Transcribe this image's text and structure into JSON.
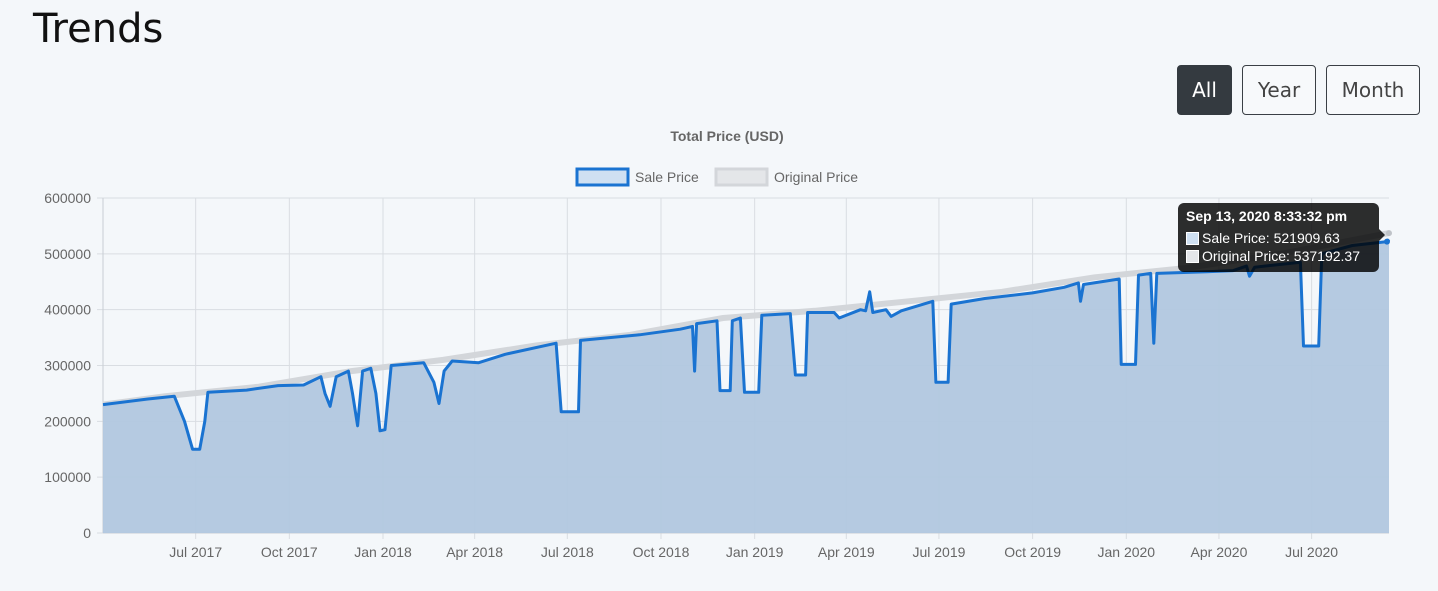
{
  "page": {
    "title": "Trends"
  },
  "range_buttons": [
    {
      "label": "All",
      "active": true
    },
    {
      "label": "Year",
      "active": false
    },
    {
      "label": "Month",
      "active": false
    }
  ],
  "colors": {
    "sale_line": "#1a73d1",
    "sale_fill": "#b1c7df",
    "original_line": "#d3d6da",
    "grid": "#d9dde2",
    "tick_text": "#666666"
  },
  "chart_data": {
    "type": "area",
    "title": "Total Price (USD)",
    "xlabel": "",
    "ylabel": "",
    "ylim": [
      0,
      600000
    ],
    "y_ticks": [
      0,
      100000,
      200000,
      300000,
      400000,
      500000,
      600000
    ],
    "x_range": [
      "2017-04-01",
      "2020-09-15"
    ],
    "x_ticks": [
      {
        "label": "Jul 2017",
        "date": "2017-07-01"
      },
      {
        "label": "Oct 2017",
        "date": "2017-10-01"
      },
      {
        "label": "Jan 2018",
        "date": "2018-01-01"
      },
      {
        "label": "Apr 2018",
        "date": "2018-04-01"
      },
      {
        "label": "Jul 2018",
        "date": "2018-07-01"
      },
      {
        "label": "Oct 2018",
        "date": "2018-10-01"
      },
      {
        "label": "Jan 2019",
        "date": "2019-01-01"
      },
      {
        "label": "Apr 2019",
        "date": "2019-04-01"
      },
      {
        "label": "Jul 2019",
        "date": "2019-07-01"
      },
      {
        "label": "Oct 2019",
        "date": "2019-10-01"
      },
      {
        "label": "Jan 2020",
        "date": "2020-01-01"
      },
      {
        "label": "Apr 2020",
        "date": "2020-04-01"
      },
      {
        "label": "Jul 2020",
        "date": "2020-07-01"
      }
    ],
    "legend": [
      "Sale Price",
      "Original Price"
    ],
    "series": [
      {
        "name": "Original Price",
        "points": [
          [
            "2017-04-01",
            230000
          ],
          [
            "2017-06-01",
            245000
          ],
          [
            "2017-09-01",
            262000
          ],
          [
            "2017-12-01",
            290000
          ],
          [
            "2018-03-01",
            310000
          ],
          [
            "2018-06-01",
            336000
          ],
          [
            "2018-09-01",
            355000
          ],
          [
            "2018-12-01",
            385000
          ],
          [
            "2019-03-01",
            398000
          ],
          [
            "2019-06-01",
            415000
          ],
          [
            "2019-09-01",
            432000
          ],
          [
            "2019-12-01",
            458000
          ],
          [
            "2020-03-01",
            475000
          ],
          [
            "2020-06-01",
            500000
          ],
          [
            "2020-09-15",
            537192.37
          ]
        ]
      },
      {
        "name": "Sale Price",
        "points": [
          [
            "2017-04-01",
            230000
          ],
          [
            "2017-05-15",
            240000
          ],
          [
            "2017-06-10",
            245000
          ],
          [
            "2017-06-20",
            200000
          ],
          [
            "2017-06-28",
            150000
          ],
          [
            "2017-07-05",
            150000
          ],
          [
            "2017-07-10",
            200000
          ],
          [
            "2017-07-13",
            252000
          ],
          [
            "2017-08-20",
            256000
          ],
          [
            "2017-09-20",
            264000
          ],
          [
            "2017-10-15",
            265000
          ],
          [
            "2017-11-01",
            280000
          ],
          [
            "2017-11-05",
            250000
          ],
          [
            "2017-11-10",
            227000
          ],
          [
            "2017-11-16",
            280000
          ],
          [
            "2017-11-28",
            290000
          ],
          [
            "2017-12-02",
            250000
          ],
          [
            "2017-12-07",
            192000
          ],
          [
            "2017-12-12",
            290000
          ],
          [
            "2017-12-20",
            295000
          ],
          [
            "2017-12-25",
            250000
          ],
          [
            "2017-12-29",
            183000
          ],
          [
            "2018-01-03",
            185000
          ],
          [
            "2018-01-09",
            300000
          ],
          [
            "2018-02-10",
            305000
          ],
          [
            "2018-02-20",
            270000
          ],
          [
            "2018-02-25",
            232000
          ],
          [
            "2018-03-02",
            290000
          ],
          [
            "2018-03-10",
            308000
          ],
          [
            "2018-04-05",
            305000
          ],
          [
            "2018-05-01",
            320000
          ],
          [
            "2018-06-20",
            340000
          ],
          [
            "2018-06-25",
            217000
          ],
          [
            "2018-07-12",
            217000
          ],
          [
            "2018-07-14",
            345000
          ],
          [
            "2018-09-10",
            355000
          ],
          [
            "2018-10-20",
            365000
          ],
          [
            "2018-11-01",
            370000
          ],
          [
            "2018-11-03",
            290000
          ],
          [
            "2018-11-05",
            375000
          ],
          [
            "2018-11-25",
            380000
          ],
          [
            "2018-11-28",
            255000
          ],
          [
            "2018-12-08",
            255000
          ],
          [
            "2018-12-10",
            380000
          ],
          [
            "2018-12-18",
            385000
          ],
          [
            "2018-12-22",
            252000
          ],
          [
            "2019-01-05",
            252000
          ],
          [
            "2019-01-08",
            390000
          ],
          [
            "2019-02-05",
            393000
          ],
          [
            "2019-02-10",
            283000
          ],
          [
            "2019-02-20",
            283000
          ],
          [
            "2019-02-22",
            395000
          ],
          [
            "2019-03-20",
            395000
          ],
          [
            "2019-03-25",
            385000
          ],
          [
            "2019-04-15",
            400000
          ],
          [
            "2019-04-20",
            398000
          ],
          [
            "2019-04-24",
            432000
          ],
          [
            "2019-04-27",
            395000
          ],
          [
            "2019-05-10",
            400000
          ],
          [
            "2019-05-15",
            388000
          ],
          [
            "2019-05-25",
            398000
          ],
          [
            "2019-06-25",
            415000
          ],
          [
            "2019-06-28",
            270000
          ],
          [
            "2019-07-10",
            270000
          ],
          [
            "2019-07-13",
            410000
          ],
          [
            "2019-08-15",
            420000
          ],
          [
            "2019-10-01",
            430000
          ],
          [
            "2019-11-01",
            440000
          ],
          [
            "2019-11-15",
            448000
          ],
          [
            "2019-11-17",
            415000
          ],
          [
            "2019-11-20",
            445000
          ],
          [
            "2019-12-25",
            455000
          ],
          [
            "2019-12-27",
            302000
          ],
          [
            "2020-01-10",
            302000
          ],
          [
            "2020-01-13",
            462000
          ],
          [
            "2020-01-25",
            465000
          ],
          [
            "2020-01-28",
            340000
          ],
          [
            "2020-01-31",
            465000
          ],
          [
            "2020-03-20",
            468000
          ],
          [
            "2020-04-15",
            470000
          ],
          [
            "2020-04-28",
            478000
          ],
          [
            "2020-05-01",
            460000
          ],
          [
            "2020-05-06",
            476000
          ],
          [
            "2020-06-20",
            485000
          ],
          [
            "2020-06-23",
            335000
          ],
          [
            "2020-07-08",
            335000
          ],
          [
            "2020-07-11",
            500000
          ],
          [
            "2020-08-10",
            515000
          ],
          [
            "2020-09-13",
            521909.63
          ],
          [
            "2020-09-15",
            526000
          ]
        ]
      }
    ],
    "tooltip": {
      "title": "Sep 13, 2020 8:33:32 pm",
      "sale_label": "Sale Price: 521909.63",
      "original_label": "Original Price: 537192.37"
    }
  }
}
